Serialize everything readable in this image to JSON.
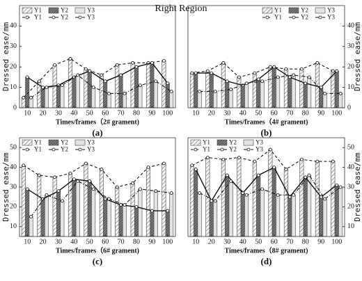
{
  "title": "Right Region",
  "chart_data": [
    {
      "type": "bar",
      "panel_label": "(a)",
      "x_label": "Times/frames（2# grament)",
      "y_label": "Dressed ease/mm",
      "y_axis_side": "left",
      "legend_corner": "upper left",
      "categories": [
        10,
        20,
        30,
        40,
        50,
        60,
        70,
        80,
        90,
        100
      ],
      "series": [
        {
          "name": "Y1",
          "color": "#f4f4f4",
          "values": [
            5,
            13,
            21,
            24,
            19,
            16,
            21,
            22,
            22,
            23
          ]
        },
        {
          "name": "Y2",
          "color": "#7a7a7a",
          "values": [
            15,
            10,
            11,
            15,
            18,
            13,
            16,
            20,
            22,
            12
          ]
        },
        {
          "name": "Y3",
          "color": "#e3e3e3",
          "values": [
            5,
            10,
            11,
            16,
            10,
            7,
            7,
            11,
            13,
            8
          ]
        }
      ],
      "ylim": [
        0,
        50
      ],
      "yticks": [
        0,
        10,
        20,
        30,
        40
      ]
    },
    {
      "type": "bar",
      "panel_label": "(b)",
      "x_label": "Times/frames（4# grament)",
      "y_label": "Dressed ease/mm",
      "y_axis_side": "right",
      "legend_corner": "upper right",
      "categories": [
        10,
        20,
        30,
        40,
        50,
        60,
        70,
        80,
        90,
        100
      ],
      "series": [
        {
          "name": "Y1",
          "color": "#f4f4f4",
          "values": [
            17,
            18,
            22,
            15,
            17,
            20,
            19,
            19,
            22,
            18
          ]
        },
        {
          "name": "Y2",
          "color": "#7a7a7a",
          "values": [
            17,
            17,
            13,
            11,
            14,
            20,
            15,
            12,
            10,
            18
          ]
        },
        {
          "name": "Y3",
          "color": "#e3e3e3",
          "values": [
            8,
            8,
            9,
            12,
            13,
            15,
            16,
            15,
            7,
            7
          ]
        }
      ],
      "ylim": [
        0,
        50
      ],
      "yticks": [
        0,
        10,
        20,
        30,
        40
      ]
    },
    {
      "type": "bar",
      "panel_label": "(c)",
      "x_label": "Times/frames（6# grament)",
      "y_label": "Dressed ease/mm",
      "y_axis_side": "left",
      "legend_corner": "upper left",
      "categories": [
        10,
        20,
        30,
        40,
        50,
        60,
        70,
        80,
        90,
        100
      ],
      "series": [
        {
          "name": "Y1",
          "color": "#f4f4f4",
          "values": [
            41,
            36,
            35,
            37,
            42,
            39,
            30,
            32,
            40,
            42
          ]
        },
        {
          "name": "Y2",
          "color": "#7a7a7a",
          "values": [
            29,
            24,
            28,
            34,
            33,
            24,
            21,
            20,
            18,
            18
          ]
        },
        {
          "name": "Y3",
          "color": "#e3e3e3",
          "values": [
            15,
            26,
            23,
            33,
            29,
            24,
            21,
            29,
            28,
            27
          ]
        }
      ],
      "ylim": [
        5,
        55
      ],
      "yticks": [
        10,
        20,
        30,
        40,
        50
      ]
    },
    {
      "type": "bar",
      "panel_label": "(d)",
      "x_label": "Times/frames（8# grament)",
      "y_label": "Dressed ease/mm",
      "y_axis_side": "right",
      "legend_corner": "upper left",
      "categories": [
        10,
        20,
        30,
        40,
        50,
        60,
        70,
        80,
        90,
        100
      ],
      "series": [
        {
          "name": "Y1",
          "color": "#f4f4f4",
          "values": [
            41,
            45,
            44,
            45,
            43,
            49,
            39,
            44,
            43,
            43
          ]
        },
        {
          "name": "Y2",
          "color": "#7a7a7a",
          "values": [
            39,
            23,
            36,
            27,
            36,
            40,
            25,
            35,
            25,
            31
          ]
        },
        {
          "name": "Y3",
          "color": "#e3e3e3",
          "values": [
            27,
            23,
            33,
            26,
            29,
            26,
            26,
            36,
            24,
            30
          ]
        }
      ],
      "ylim": [
        5,
        55
      ],
      "yticks": [
        10,
        20,
        30,
        40,
        50
      ]
    }
  ]
}
